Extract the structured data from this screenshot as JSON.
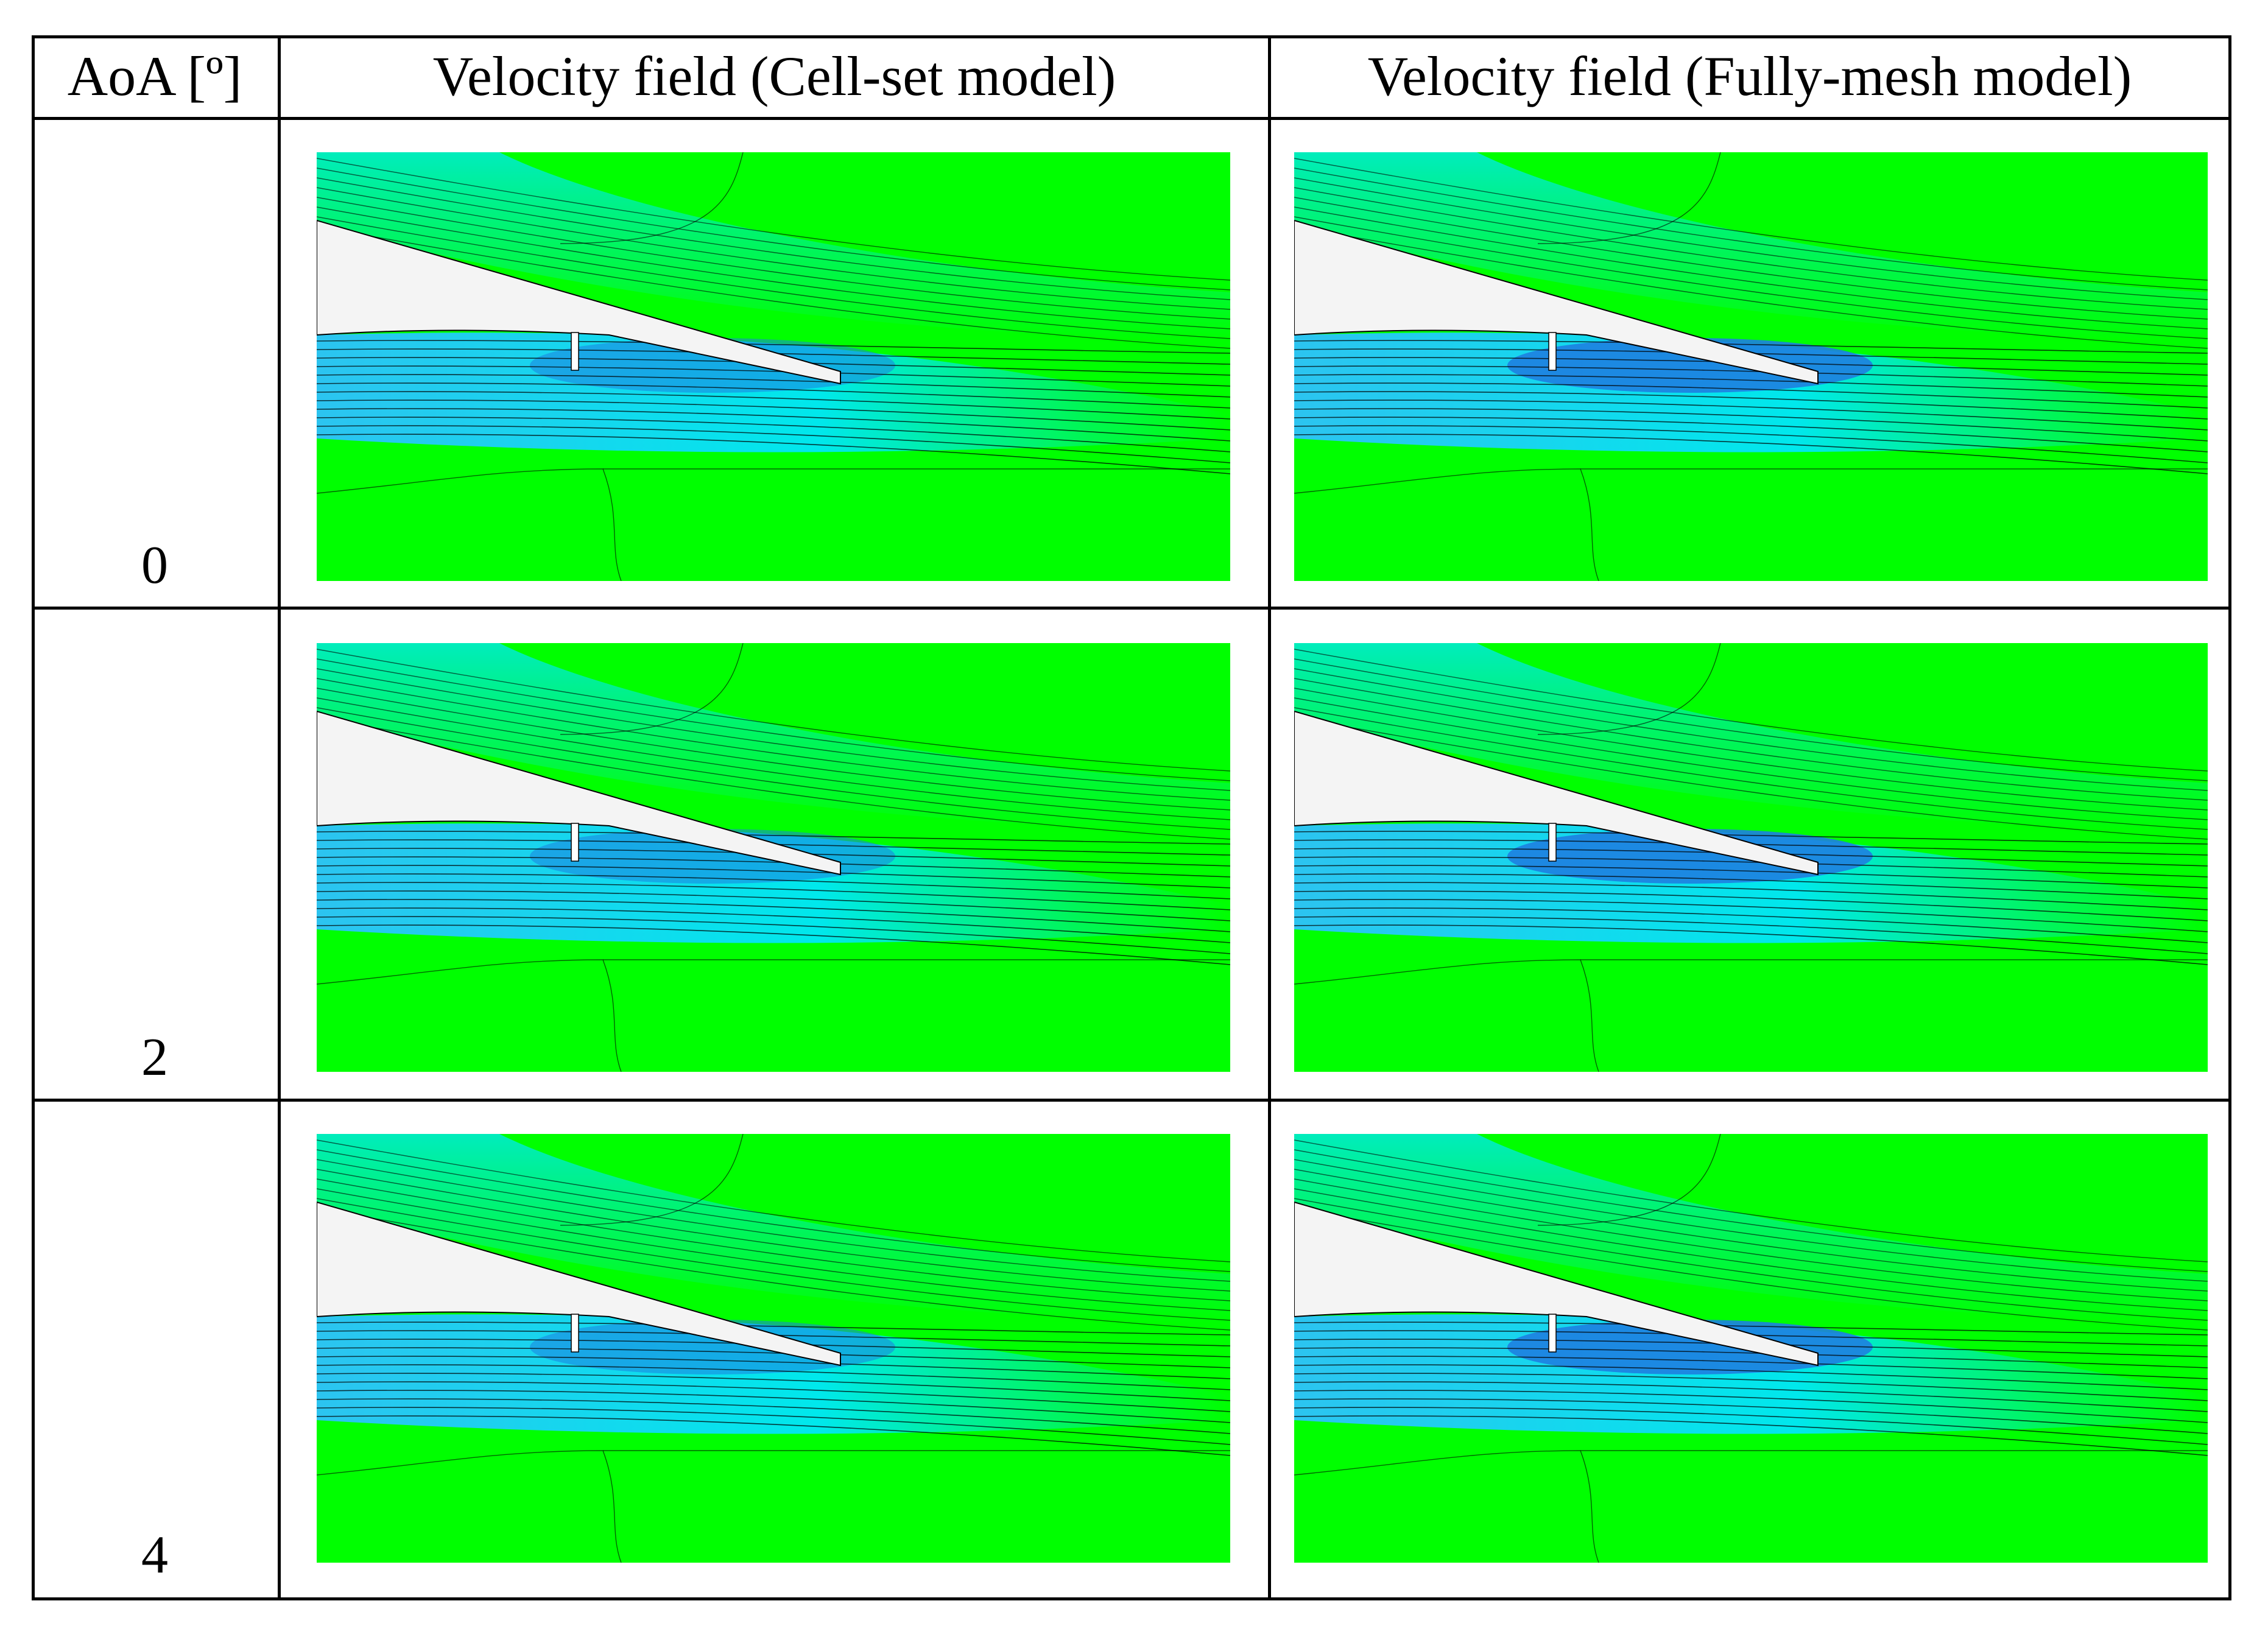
{
  "table": {
    "headers": {
      "aoa": "AoA [º]",
      "cell_set": "Velocity field (Cell-set model)",
      "fully_mesh": "Velocity field (Fully-mesh model)"
    },
    "rows": [
      {
        "aoa": "0"
      },
      {
        "aoa": "2"
      },
      {
        "aoa": "4"
      }
    ]
  },
  "colors": {
    "freestream": "#00ff00",
    "wake_cyan": "#00e8ec",
    "wake_light_blue": "#2cc4f0",
    "low_velocity_blue": "#1e7fe0",
    "airfoil": "#f4f4f4",
    "contour_line": "#000000"
  }
}
